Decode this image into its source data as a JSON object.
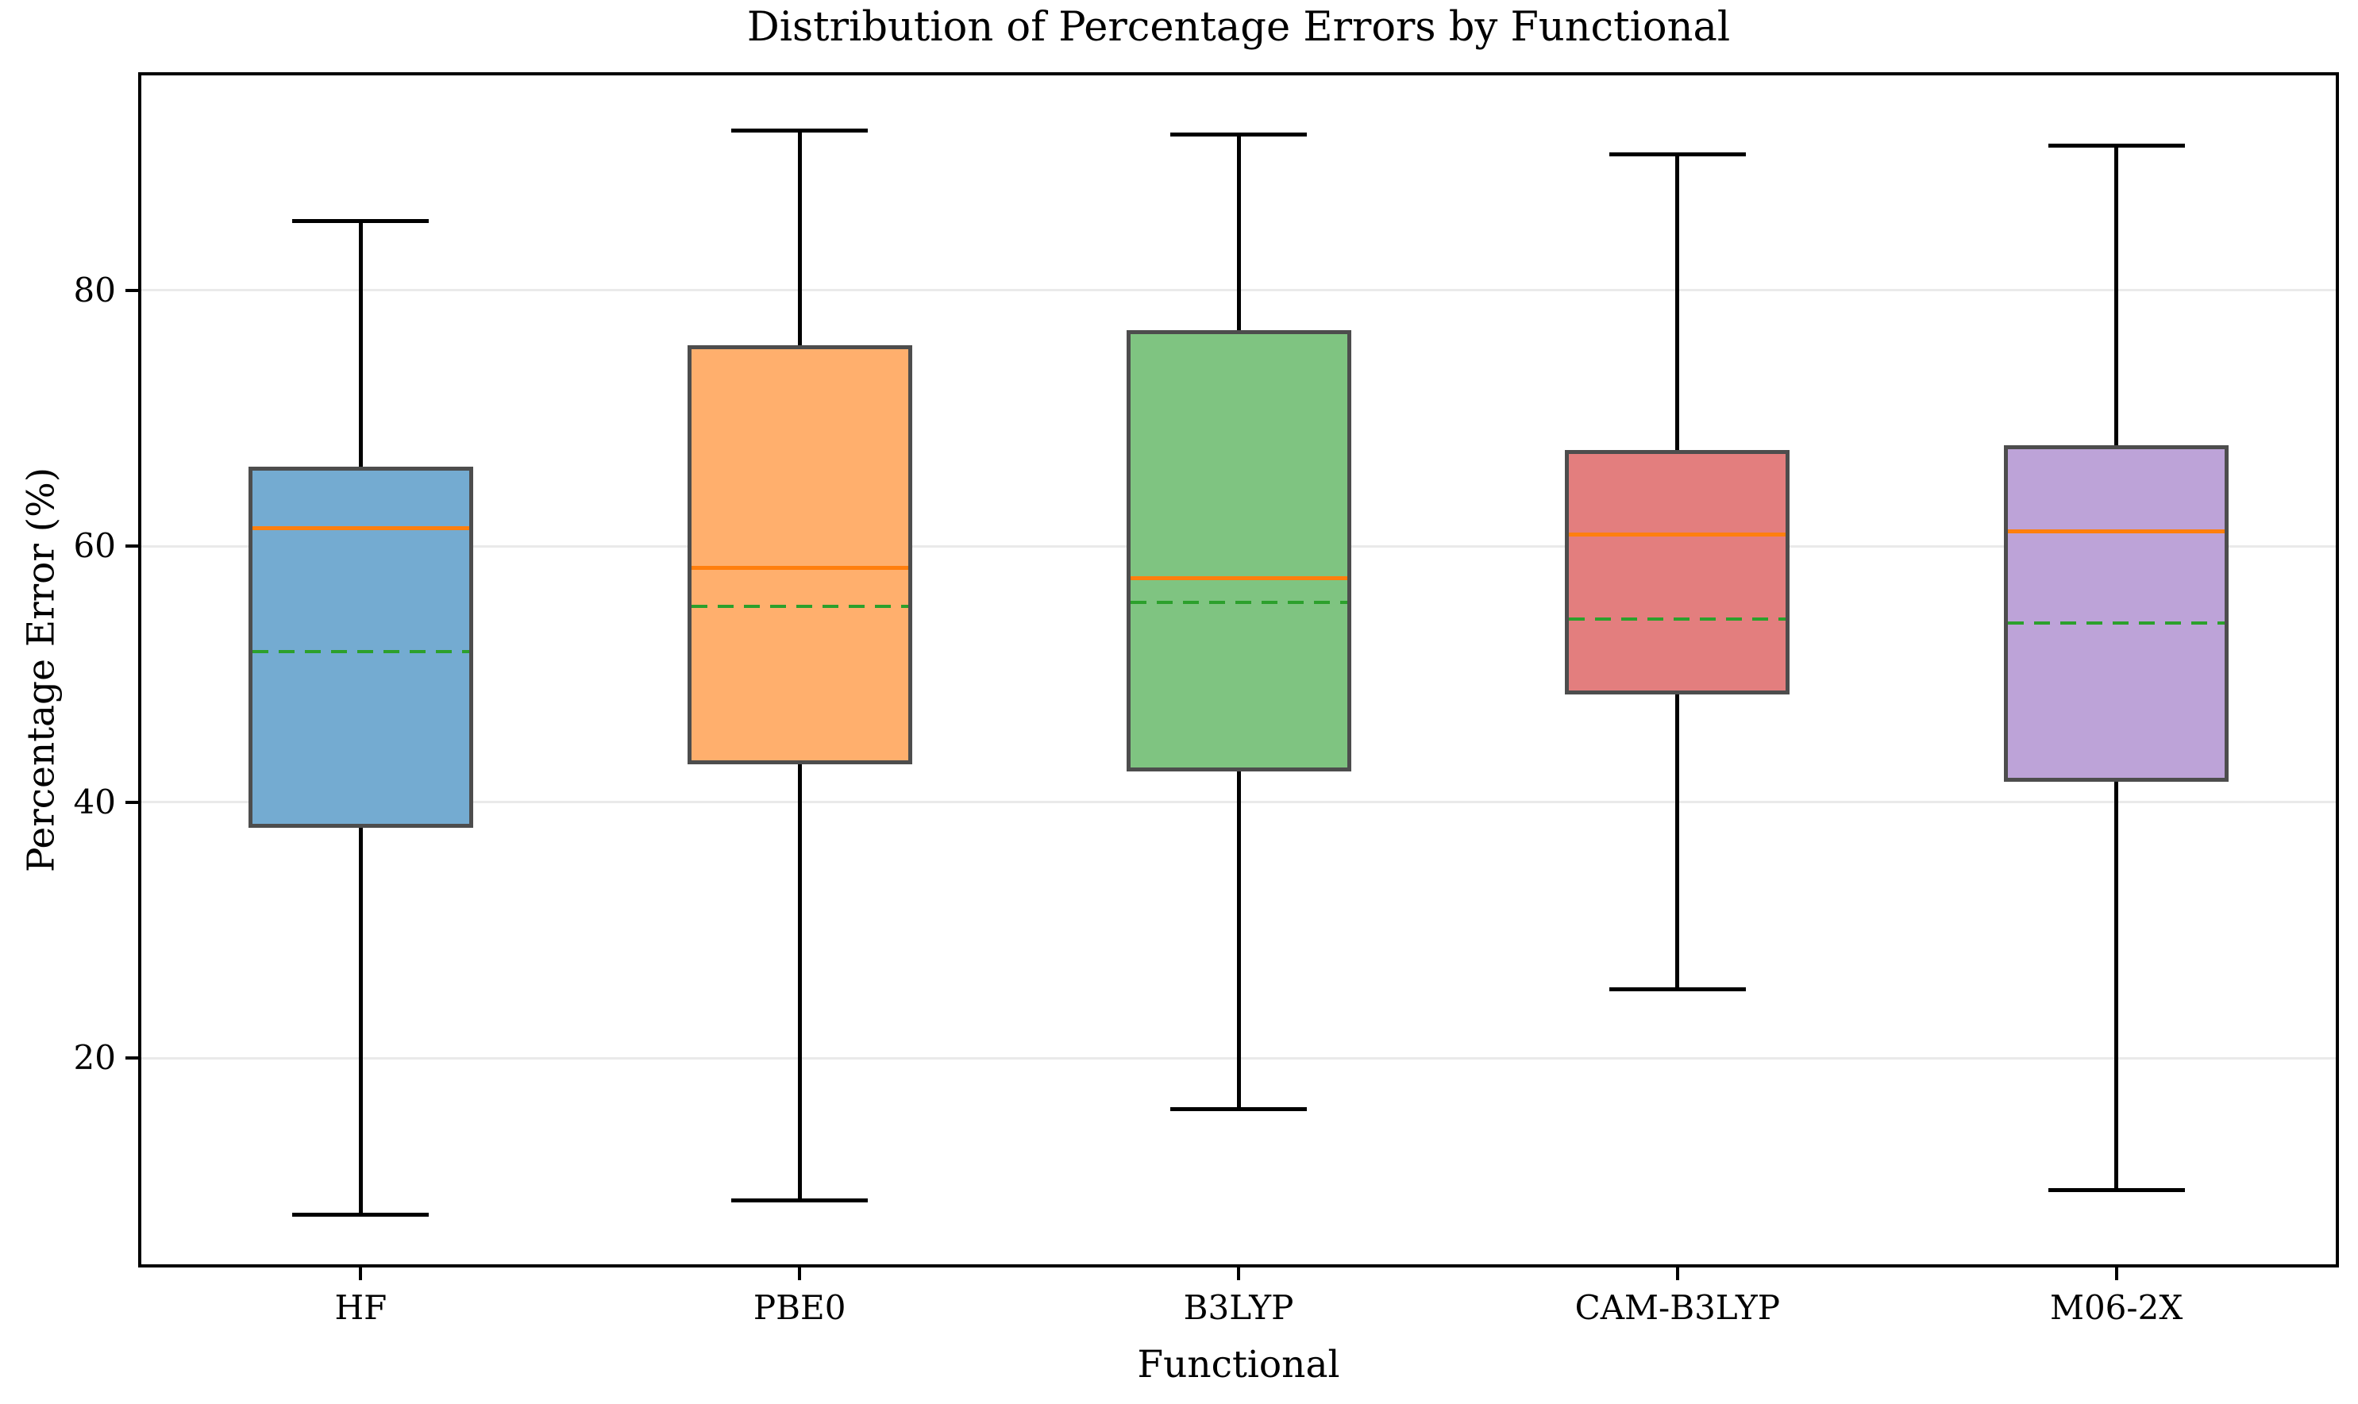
{
  "chart_data": {
    "type": "box",
    "title": "Distribution of Percentage Errors by Functional",
    "xlabel": "Functional",
    "ylabel": "Percentage Error (%)",
    "categories": [
      "HF",
      "PBE0",
      "B3LYP",
      "CAM-B3LYP",
      "M06-2X"
    ],
    "yticks": [
      20,
      40,
      60,
      80
    ],
    "ylim": [
      3.9,
      96.8
    ],
    "grid": true,
    "legend": "none",
    "series": [
      {
        "label": "HF",
        "whisker_low": 7.8,
        "q1": 38.0,
        "median": 61.4,
        "mean": 51.8,
        "q3": 66.2,
        "whisker_high": 85.4,
        "fill": "#74abd1"
      },
      {
        "label": "PBE0",
        "whisker_low": 8.9,
        "q1": 43.0,
        "median": 58.3,
        "mean": 55.3,
        "q3": 75.7,
        "whisker_high": 92.5,
        "fill": "#ffaf6d"
      },
      {
        "label": "B3LYP",
        "whisker_low": 16.0,
        "q1": 42.4,
        "median": 57.5,
        "mean": 55.6,
        "q3": 76.9,
        "whisker_high": 92.2,
        "fill": "#7fc481"
      },
      {
        "label": "CAM-B3LYP",
        "whisker_low": 25.4,
        "q1": 48.4,
        "median": 60.9,
        "mean": 54.3,
        "q3": 67.5,
        "whisker_high": 90.6,
        "fill": "#e37e7e"
      },
      {
        "label": "M06-2X",
        "whisker_low": 9.7,
        "q1": 41.6,
        "median": 61.2,
        "mean": 54.0,
        "q3": 67.9,
        "whisker_high": 91.3,
        "fill": "#bda3d8"
      }
    ],
    "colors": {
      "median_line": "#ff7f0e",
      "mean_line": "#2ca02c",
      "box_edge": "#4d4d4d",
      "whisker": "#000000",
      "gridline": "#eaeaea",
      "spine": "#000000",
      "background": "#ffffff"
    }
  }
}
